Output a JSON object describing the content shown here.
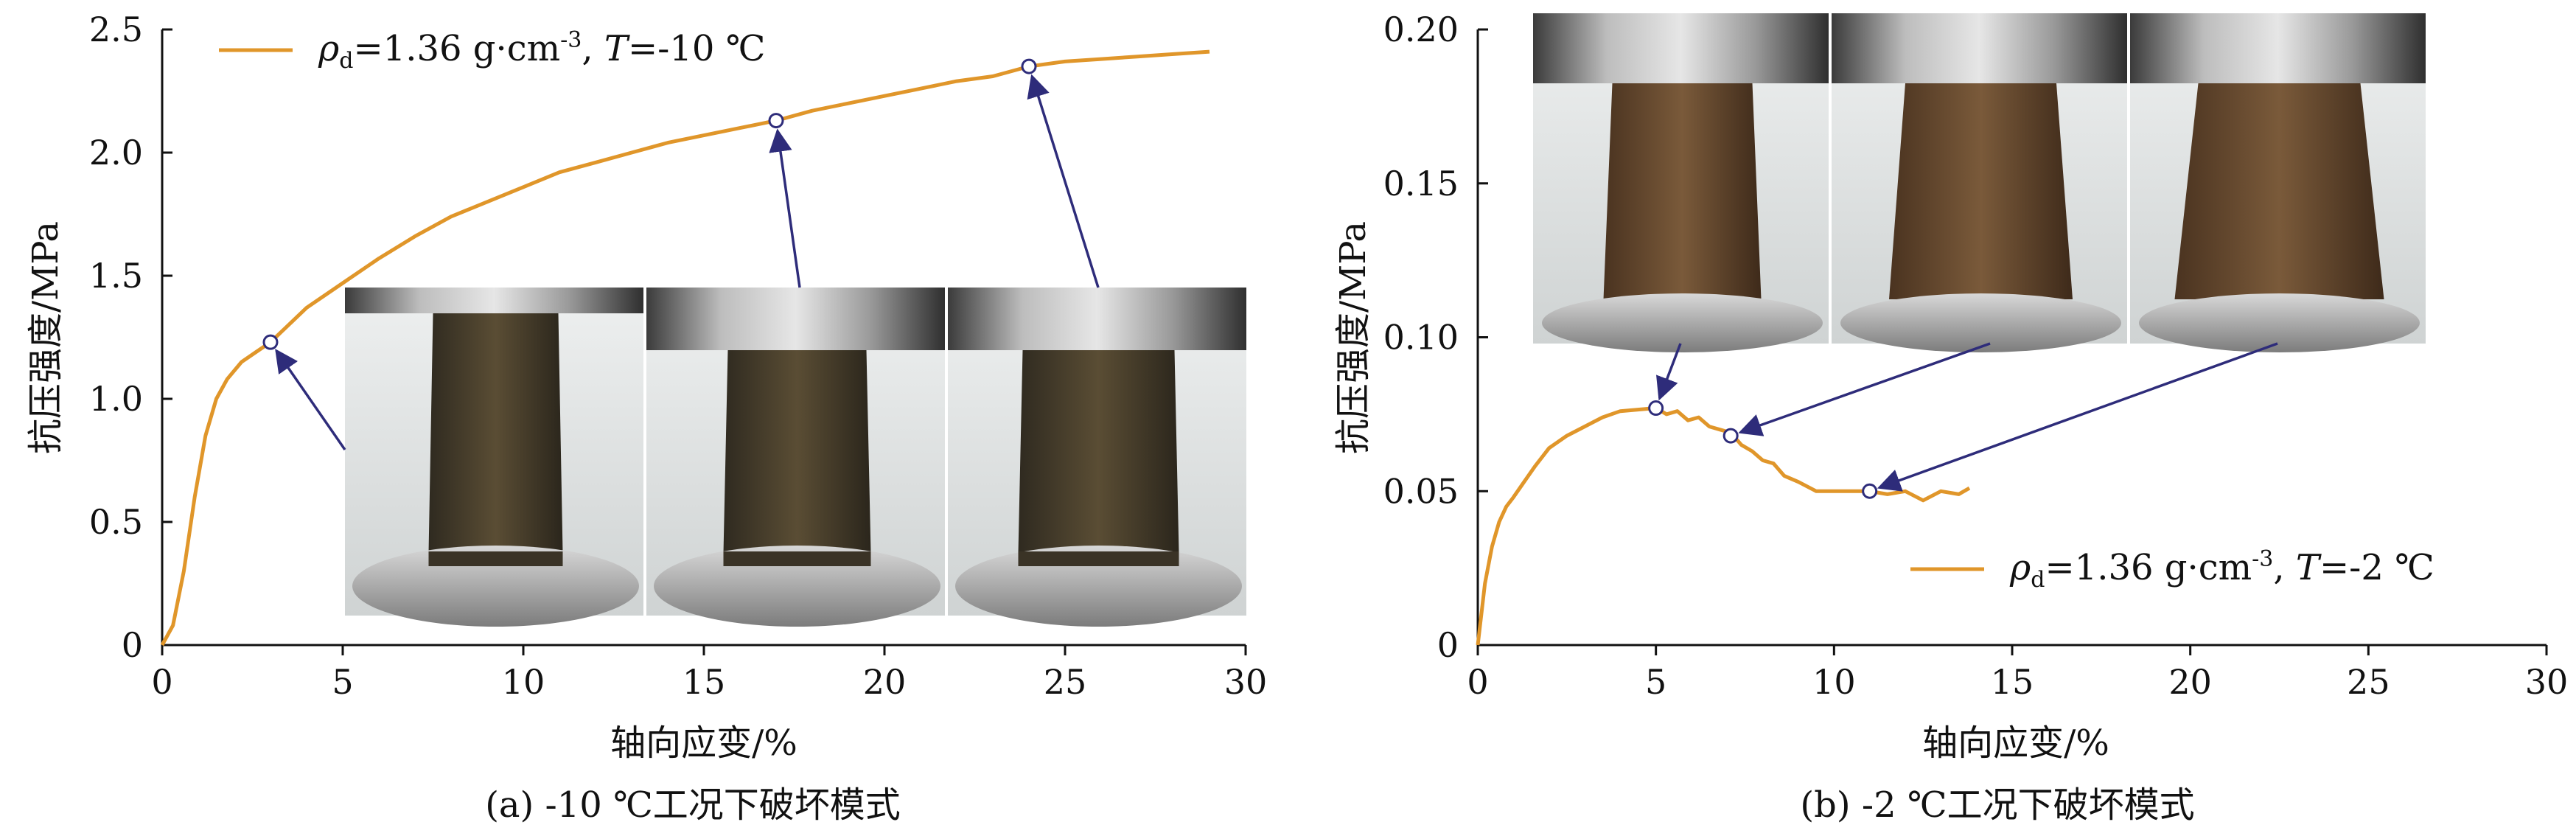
{
  "figure": {
    "colors": {
      "curve": "#E0962A",
      "arrow": "#2E2C7A",
      "axis": "#111111",
      "marker_fill": "#ffffff"
    }
  },
  "chart_data": [
    {
      "type": "line",
      "caption": "(a) -10 ℃工况下破坏模式",
      "xlabel": "轴向应变/%",
      "ylabel": "抗压强度/MPa",
      "xlim": [
        0,
        30
      ],
      "ylim": [
        0,
        2.5
      ],
      "xticks": [
        "0",
        "5",
        "10",
        "15",
        "20",
        "25",
        "30"
      ],
      "yticks": [
        "0",
        "0.5",
        "1.0",
        "1.5",
        "2.0",
        "2.5"
      ],
      "legend": {
        "position": "top-left",
        "rho_sub": "d",
        "text_a": "=1.36 g·cm",
        "exp": "-3",
        "text_b": ", ",
        "T_text": "=-10 ℃"
      },
      "series": [
        {
          "x": [
            0,
            0.3,
            0.6,
            0.9,
            1.2,
            1.5,
            1.8,
            2.2,
            2.6,
            3.0,
            3.5,
            4.0,
            5.0,
            6.0,
            7.0,
            8.0,
            9.0,
            10.0,
            11.0,
            12.0,
            13.0,
            14.0,
            15.0,
            16.0,
            17.0,
            18.0,
            19.0,
            20.0,
            21.0,
            22.0,
            23.0,
            24.0,
            25.0,
            26.0,
            27.0,
            28.0,
            29.0
          ],
          "y": [
            0,
            0.08,
            0.3,
            0.6,
            0.85,
            1.0,
            1.08,
            1.15,
            1.19,
            1.23,
            1.3,
            1.37,
            1.47,
            1.57,
            1.66,
            1.74,
            1.8,
            1.86,
            1.92,
            1.96,
            2.0,
            2.04,
            2.07,
            2.1,
            2.13,
            2.17,
            2.2,
            2.23,
            2.26,
            2.29,
            2.31,
            2.35,
            2.37,
            2.38,
            2.39,
            2.4,
            2.41
          ]
        }
      ],
      "markers": [
        {
          "x": 3.0,
          "y": 1.23
        },
        {
          "x": 17.0,
          "y": 2.13
        },
        {
          "x": 24.0,
          "y": 2.35
        }
      ],
      "photo_count": 3
    },
    {
      "type": "line",
      "caption": "(b) -2 ℃工况下破坏模式",
      "xlabel": "轴向应变/%",
      "ylabel": "抗压强度/MPa",
      "xlim": [
        0,
        30
      ],
      "ylim": [
        0,
        0.2
      ],
      "xticks": [
        "0",
        "5",
        "10",
        "15",
        "20",
        "25",
        "30"
      ],
      "yticks": [
        "0",
        "0.05",
        "0.10",
        "0.15",
        "0.20"
      ],
      "legend": {
        "position": "bottom-right",
        "rho_sub": "d",
        "text_a": "=1.36 g·cm",
        "exp": "-3",
        "text_b": ", ",
        "T_text": "=-2 ℃"
      },
      "series": [
        {
          "x": [
            0,
            0.2,
            0.4,
            0.6,
            0.8,
            1.0,
            1.3,
            1.6,
            2.0,
            2.5,
            3.0,
            3.5,
            4.0,
            4.5,
            5.0,
            5.3,
            5.6,
            5.9,
            6.2,
            6.5,
            6.8,
            7.1,
            7.4,
            7.7,
            8.0,
            8.3,
            8.6,
            9.0,
            9.5,
            10.0,
            10.5,
            11.0,
            11.5,
            12.0,
            12.5,
            13.0,
            13.5,
            13.8
          ],
          "y": [
            0,
            0.02,
            0.032,
            0.04,
            0.045,
            0.048,
            0.053,
            0.058,
            0.064,
            0.068,
            0.071,
            0.074,
            0.076,
            0.0765,
            0.077,
            0.075,
            0.076,
            0.073,
            0.074,
            0.071,
            0.07,
            0.069,
            0.065,
            0.063,
            0.06,
            0.059,
            0.055,
            0.053,
            0.05,
            0.05,
            0.05,
            0.05,
            0.049,
            0.05,
            0.047,
            0.05,
            0.049,
            0.051
          ]
        }
      ],
      "markers": [
        {
          "x": 5.0,
          "y": 0.077
        },
        {
          "x": 7.1,
          "y": 0.068
        },
        {
          "x": 11.0,
          "y": 0.05
        }
      ],
      "photo_count": 3
    }
  ]
}
